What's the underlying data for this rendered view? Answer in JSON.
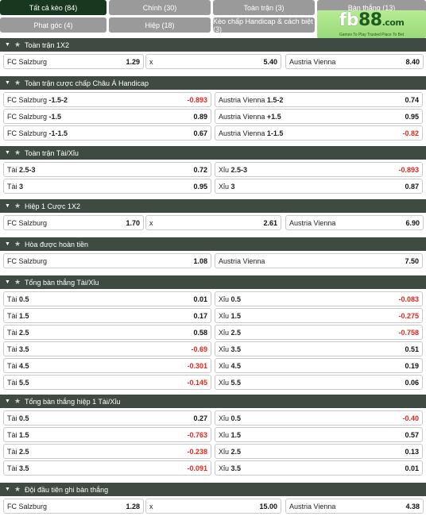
{
  "tabs": [
    {
      "label": "Tất cả kèo (84)",
      "active": true
    },
    {
      "label": "Chính (30)"
    },
    {
      "label": "Toàn trận (3)"
    },
    {
      "label": "Bàn thắng (13)"
    },
    {
      "label": "Phạt góc (4)"
    },
    {
      "label": "Hiệp (18)"
    },
    {
      "label": "Kèo chấp Handicap & cách biệt (3)"
    }
  ],
  "logo": {
    "fb": "fb",
    "n88": "88",
    "com": ".com",
    "tagline": "Games To Play  Trusted Place To Bet"
  },
  "colors": {
    "header_bg": "#3e4a42",
    "tab_active": "#17381f",
    "tab_inactive": "#9a9a9a",
    "negative": "#e0261e"
  },
  "sections": [
    {
      "title": "Toàn trận 1X2",
      "layout": "three",
      "rows": [
        [
          {
            "label": "FC Salzburg",
            "odd": "1.29"
          },
          {
            "label": "x",
            "odd": "5.40"
          },
          {
            "label": "Austria Vienna",
            "odd": "8.40"
          }
        ]
      ]
    },
    {
      "title": "Toàn trận cược chấp Châu Á Handicap",
      "layout": "two",
      "rows": [
        [
          {
            "label": "FC Salzburg",
            "line": "-1.5-2",
            "odd": "-0.893"
          },
          {
            "label": "Austria Vienna",
            "line": "1.5-2",
            "odd": "0.74"
          }
        ],
        [
          {
            "label": "FC Salzburg",
            "line": "-1.5",
            "odd": "0.89"
          },
          {
            "label": "Austria Vienna",
            "line": "+1.5",
            "odd": "0.95"
          }
        ],
        [
          {
            "label": "FC Salzburg",
            "line": "-1-1.5",
            "odd": "0.67"
          },
          {
            "label": "Austria Vienna",
            "line": "1-1.5",
            "odd": "-0.82"
          }
        ]
      ]
    },
    {
      "title": "Toàn trận Tài/Xỉu",
      "layout": "two",
      "rows": [
        [
          {
            "label": "Tài",
            "line": "2.5-3",
            "odd": "0.72"
          },
          {
            "label": "Xỉu",
            "line": "2.5-3",
            "odd": "-0.893"
          }
        ],
        [
          {
            "label": "Tài",
            "line": "3",
            "odd": "0.95"
          },
          {
            "label": "Xỉu",
            "line": "3",
            "odd": "0.87"
          }
        ]
      ]
    },
    {
      "title": "Hiệp 1 Cược 1X2",
      "layout": "three",
      "rows": [
        [
          {
            "label": "FC Salzburg",
            "odd": "1.70"
          },
          {
            "label": "x",
            "odd": "2.61"
          },
          {
            "label": "Austria Vienna",
            "odd": "6.90"
          }
        ]
      ]
    },
    {
      "title": "Hòa được hoàn tiền",
      "layout": "two",
      "rows": [
        [
          {
            "label": "FC Salzburg",
            "odd": "1.08"
          },
          {
            "label": "Austria Vienna",
            "odd": "7.50"
          }
        ]
      ]
    },
    {
      "title": "Tổng bàn thắng Tài/Xỉu",
      "layout": "two",
      "rows": [
        [
          {
            "label": "Tài",
            "line": "0.5",
            "odd": "0.01"
          },
          {
            "label": "Xỉu",
            "line": "0.5",
            "odd": "-0.083"
          }
        ],
        [
          {
            "label": "Tài",
            "line": "1.5",
            "odd": "0.17"
          },
          {
            "label": "Xỉu",
            "line": "1.5",
            "odd": "-0.275"
          }
        ],
        [
          {
            "label": "Tài",
            "line": "2.5",
            "odd": "0.58"
          },
          {
            "label": "Xỉu",
            "line": "2.5",
            "odd": "-0.758"
          }
        ],
        [
          {
            "label": "Tài",
            "line": "3.5",
            "odd": "-0.69"
          },
          {
            "label": "Xỉu",
            "line": "3.5",
            "odd": "0.51"
          }
        ],
        [
          {
            "label": "Tài",
            "line": "4.5",
            "odd": "-0.301"
          },
          {
            "label": "Xỉu",
            "line": "4.5",
            "odd": "0.19"
          }
        ],
        [
          {
            "label": "Tài",
            "line": "5.5",
            "odd": "-0.145"
          },
          {
            "label": "Xỉu",
            "line": "5.5",
            "odd": "0.06"
          }
        ]
      ]
    },
    {
      "title": "Tổng bàn thắng hiệp 1 Tài/Xỉu",
      "layout": "two",
      "rows": [
        [
          {
            "label": "Tài",
            "line": "0.5",
            "odd": "0.27"
          },
          {
            "label": "Xỉu",
            "line": "0.5",
            "odd": "-0.40"
          }
        ],
        [
          {
            "label": "Tài",
            "line": "1.5",
            "odd": "-0.763"
          },
          {
            "label": "Xỉu",
            "line": "1.5",
            "odd": "0.57"
          }
        ],
        [
          {
            "label": "Tài",
            "line": "2.5",
            "odd": "-0.238"
          },
          {
            "label": "Xỉu",
            "line": "2.5",
            "odd": "0.13"
          }
        ],
        [
          {
            "label": "Tài",
            "line": "3.5",
            "odd": "-0.091"
          },
          {
            "label": "Xỉu",
            "line": "3.5",
            "odd": "0.01"
          }
        ]
      ]
    },
    {
      "title": "Đội đầu tiên ghi bàn thắng",
      "layout": "three",
      "rows": [
        [
          {
            "label": "FC Salzburg",
            "odd": "1.28"
          },
          {
            "label": "x",
            "odd": "15.00"
          },
          {
            "label": "Austria Vienna",
            "odd": "4.38"
          }
        ]
      ]
    }
  ]
}
